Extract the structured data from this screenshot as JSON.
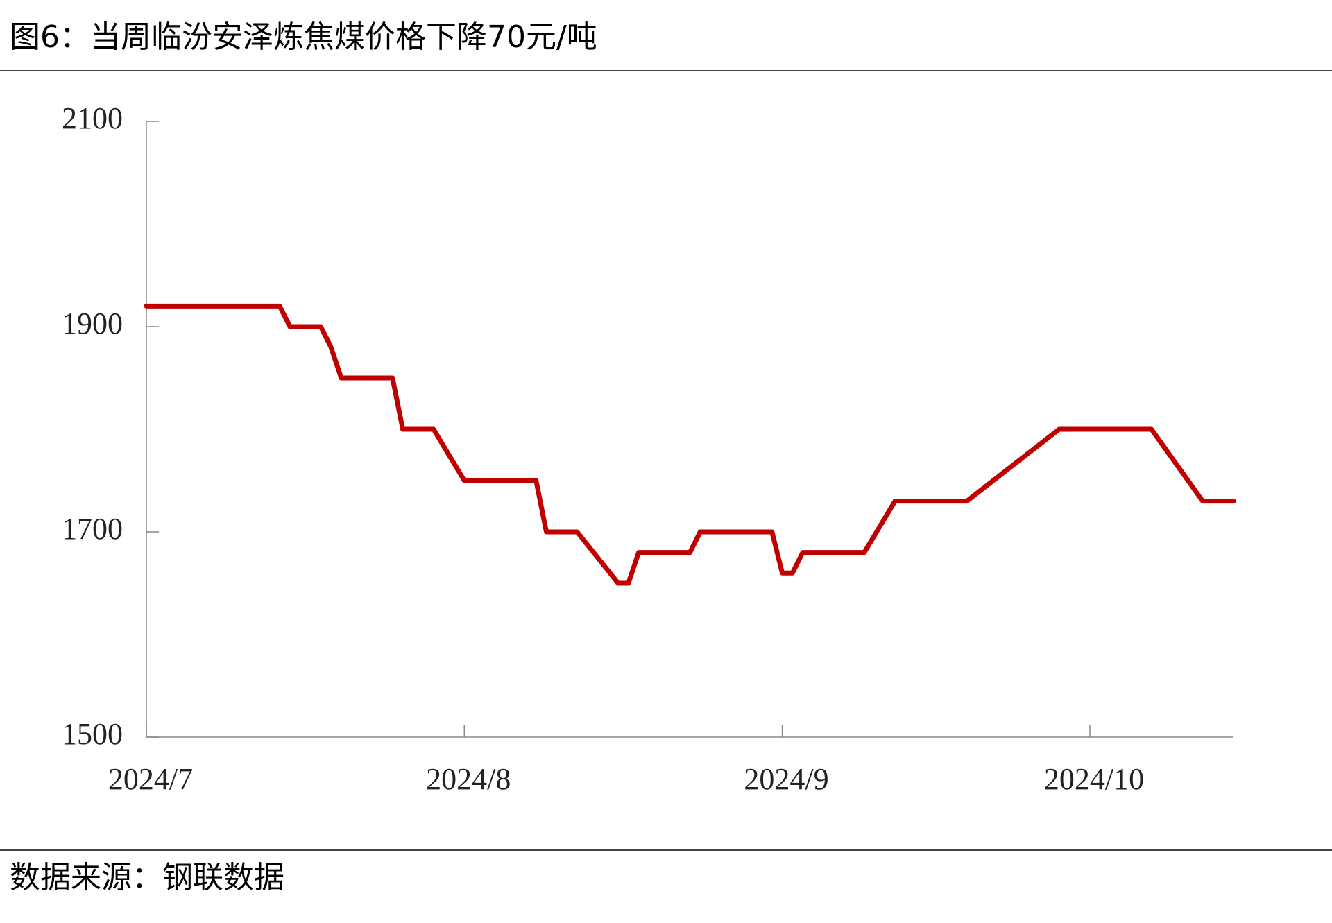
{
  "chart_data": {
    "type": "line",
    "title": "图6：当周临汾安泽炼焦煤价格下降70元/吨",
    "source": "数据来源：钢联数据",
    "x": [
      0,
      13,
      14,
      17,
      18,
      19,
      24,
      25,
      28,
      31,
      38,
      39,
      42,
      46,
      47,
      48,
      53,
      54,
      61,
      62,
      63,
      64,
      70,
      73,
      80,
      89,
      98,
      103,
      106
    ],
    "series": [
      {
        "name": "临汾安泽炼焦煤价格",
        "color": "#c00000",
        "values": [
          1920,
          1920,
          1900,
          1900,
          1880,
          1850,
          1850,
          1800,
          1800,
          1750,
          1750,
          1700,
          1700,
          1650,
          1650,
          1680,
          1680,
          1700,
          1700,
          1660,
          1660,
          1680,
          1680,
          1730,
          1730,
          1800,
          1800,
          1730,
          1730
        ]
      }
    ],
    "xlim": [
      0,
      106
    ],
    "xticks": [
      {
        "value": 0,
        "label": "2024/7"
      },
      {
        "value": 31,
        "label": "2024/8"
      },
      {
        "value": 62,
        "label": "2024/9"
      },
      {
        "value": 92,
        "label": "2024/10"
      }
    ],
    "ylim": [
      1500,
      2100
    ],
    "yticks": [
      1500,
      1700,
      1900,
      2100
    ],
    "grid": false
  }
}
